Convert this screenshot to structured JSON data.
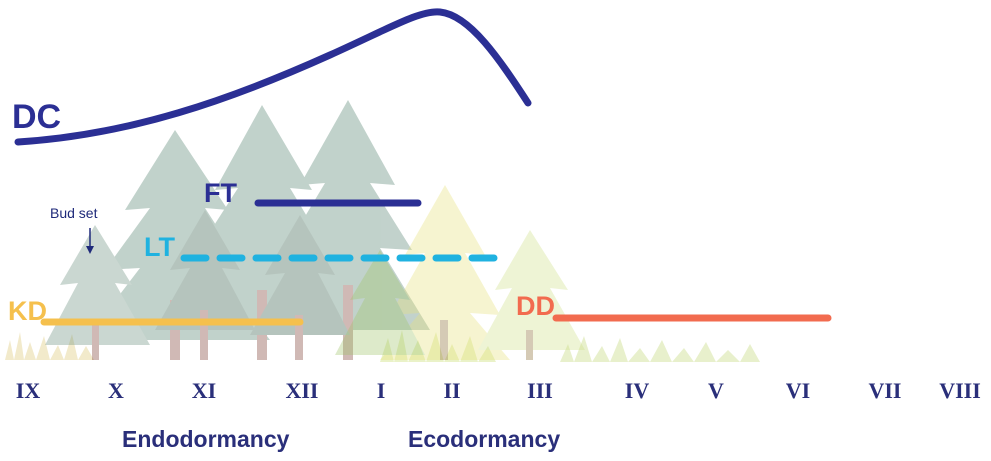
{
  "curves": {
    "dc": {
      "label": "DC",
      "color": "#2b2f94"
    },
    "ft": {
      "label": "FT",
      "color": "#2b2f94"
    },
    "lt": {
      "label": "LT",
      "color": "#1fb2e0"
    },
    "kd": {
      "label": "KD",
      "color": "#f5c04d"
    },
    "dd": {
      "label": "DD",
      "color": "#f26b4f"
    }
  },
  "annotation": {
    "bud_set": "Bud set"
  },
  "months": [
    "IX",
    "X",
    "XI",
    "XII",
    "I",
    "II",
    "III",
    "IV",
    "V",
    "VI",
    "VII",
    "VIII"
  ],
  "phases": {
    "endo": "Endodormancy",
    "eco": "Ecodormancy"
  }
}
